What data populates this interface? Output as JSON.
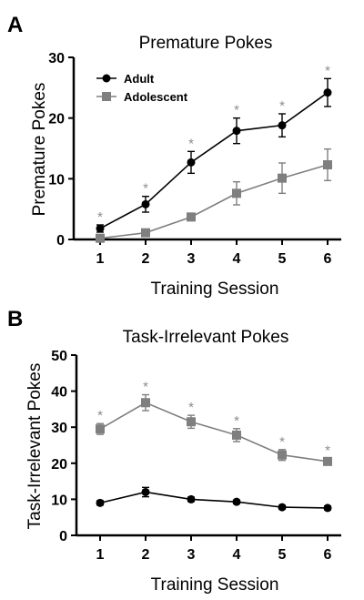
{
  "figure": {
    "panels": [
      {
        "letter": "A",
        "title": "Premature Pokes",
        "ylabel": "Premature Pokes",
        "xlabel": "Training  Session"
      },
      {
        "letter": "B",
        "title": "Task-Irrelevant Pokes",
        "ylabel": "Task-Irrelevant  Pokes",
        "xlabel": "Training  Session"
      }
    ]
  },
  "chart_data": [
    {
      "type": "line",
      "title": "Premature Pokes",
      "xlabel": "Training  Session",
      "ylabel": "Premature Pokes",
      "x": [
        1,
        2,
        3,
        4,
        5,
        6
      ],
      "xticks": [
        "1",
        "2",
        "3",
        "4",
        "5",
        "6"
      ],
      "ylim": [
        0,
        30
      ],
      "yticks": [
        "0",
        "10",
        "20",
        "30"
      ],
      "legend": "top-left",
      "grid": false,
      "series": [
        {
          "name": "Adult",
          "marker": "circle",
          "color": "#000000",
          "values": [
            1.8,
            5.8,
            12.7,
            17.9,
            18.8,
            24.2
          ],
          "error": [
            0.6,
            1.3,
            1.8,
            2.1,
            1.9,
            2.3
          ]
        },
        {
          "name": "Adolescent",
          "marker": "square",
          "color": "#7f7f7f",
          "values": [
            0.2,
            1.1,
            3.7,
            7.6,
            10.1,
            12.3
          ],
          "error": [
            0.2,
            0.4,
            0.4,
            1.9,
            2.5,
            2.6
          ]
        }
      ],
      "significance": {
        "symbol": "*",
        "x": [
          1,
          2,
          3,
          4,
          5,
          6
        ]
      }
    },
    {
      "type": "line",
      "title": "Task-Irrelevant Pokes",
      "xlabel": "Training  Session",
      "ylabel": "Task-Irrelevant  Pokes",
      "x": [
        1,
        2,
        3,
        4,
        5,
        6
      ],
      "xticks": [
        "1",
        "2",
        "3",
        "4",
        "5",
        "6"
      ],
      "ylim": [
        0,
        50
      ],
      "yticks": [
        "0",
        "10",
        "20",
        "30",
        "40",
        "50"
      ],
      "grid": false,
      "series": [
        {
          "name": "Adult",
          "marker": "circle",
          "color": "#000000",
          "values": [
            9.0,
            12.0,
            10.0,
            9.3,
            7.8,
            7.6
          ],
          "error": [
            0.6,
            1.3,
            0.6,
            0.5,
            0.5,
            0.5
          ]
        },
        {
          "name": "Adolescent",
          "marker": "square",
          "color": "#7f7f7f",
          "values": [
            29.5,
            36.8,
            31.5,
            27.8,
            22.3,
            20.5
          ],
          "error": [
            1.5,
            2.2,
            1.8,
            1.8,
            1.5,
            0.9
          ]
        }
      ],
      "significance": {
        "symbol": "*",
        "x": [
          1,
          2,
          3,
          4,
          5,
          6
        ]
      }
    }
  ]
}
